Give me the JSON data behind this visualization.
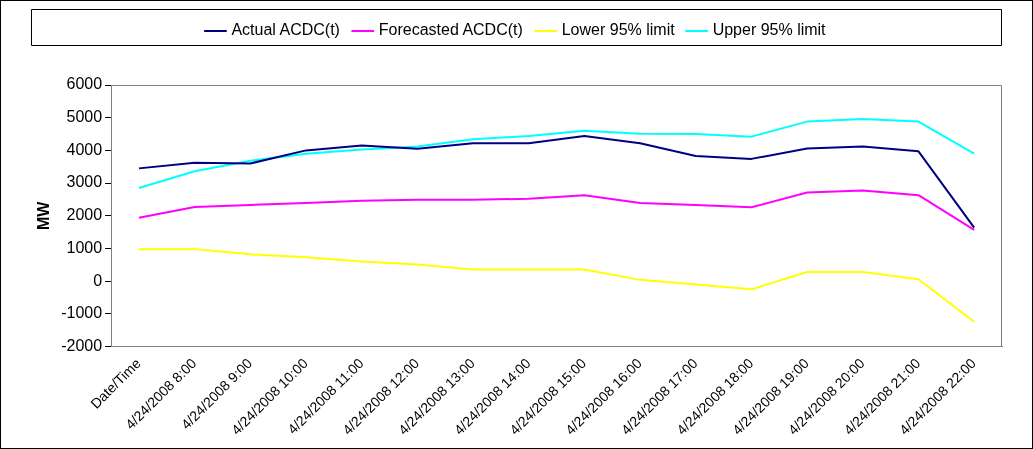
{
  "chart_data": {
    "type": "line",
    "ylabel": "MW",
    "categories": [
      "Date/Time",
      "4/24/2008 8:00",
      "4/24/2008 9:00",
      "4/24/2008 10:00",
      "4/24/2008 11:00",
      "4/24/2008 12:00",
      "4/24/2008 13:00",
      "4/24/2008 14:00",
      "4/24/2008 15:00",
      "4/24/2008 16:00",
      "4/24/2008 17:00",
      "4/24/2008 18:00",
      "4/24/2008 19:00",
      "4/24/2008 20:00",
      "4/24/2008 21:00",
      "4/24/2008 22:00"
    ],
    "series": [
      {
        "name": "Actual ACDC(t)",
        "color": "#000080",
        "values": [
          3450,
          3620,
          3600,
          4000,
          4150,
          4050,
          4220,
          4220,
          4440,
          4220,
          3830,
          3740,
          4060,
          4120,
          3970,
          1640
        ]
      },
      {
        "name": "Forecasted ACDC(t)",
        "color": "#ff00ff",
        "values": [
          1940,
          2270,
          2330,
          2390,
          2460,
          2490,
          2490,
          2520,
          2630,
          2390,
          2330,
          2260,
          2710,
          2770,
          2630,
          1570
        ]
      },
      {
        "name": "Lower 95% limit",
        "color": "#ffff00",
        "values": [
          980,
          980,
          820,
          730,
          600,
          510,
          360,
          360,
          360,
          40,
          -100,
          -250,
          280,
          280,
          60,
          -1240
        ]
      },
      {
        "name": "Upper 95% limit",
        "color": "#00ffff",
        "values": [
          2850,
          3360,
          3680,
          3900,
          4030,
          4120,
          4340,
          4440,
          4600,
          4510,
          4500,
          4420,
          4880,
          4960,
          4880,
          3900
        ]
      }
    ],
    "ylim": [
      -2000,
      6000
    ],
    "yticks": [
      -2000,
      -1000,
      0,
      1000,
      2000,
      3000,
      4000,
      5000,
      6000
    ],
    "grid": false,
    "legend": "top",
    "marker": "none",
    "line_style": "solid"
  }
}
